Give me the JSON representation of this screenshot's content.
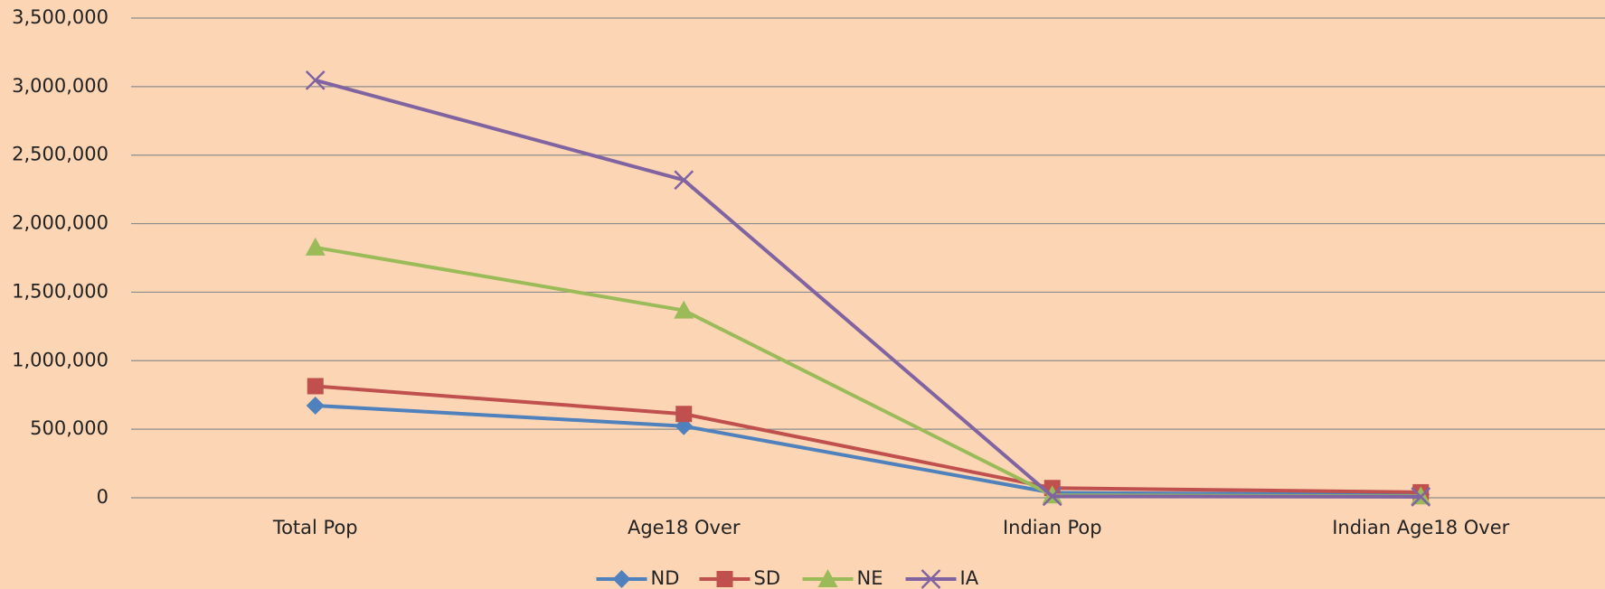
{
  "chart_data": {
    "type": "line",
    "categories": [
      "Total Pop",
      "Age18 Over",
      "Indian Pop",
      "Indian Age18 Over"
    ],
    "series": [
      {
        "name": "ND",
        "color": "#4f81bd",
        "marker": "diamond",
        "values": [
          672591,
          522720,
          36000,
          22000
        ]
      },
      {
        "name": "SD",
        "color": "#c0504d",
        "marker": "square",
        "values": [
          814180,
          611383,
          71000,
          40000
        ]
      },
      {
        "name": "NE",
        "color": "#9bbb59",
        "marker": "triangle",
        "values": [
          1826341,
          1367120,
          18000,
          11000
        ]
      },
      {
        "name": "IA",
        "color": "#8064a2",
        "marker": "x",
        "values": [
          3046355,
          2318362,
          11000,
          7000
        ]
      }
    ],
    "ylim": [
      0,
      3500000
    ],
    "yticks": [
      0,
      {
        "value": 500000,
        "label": "500,000"
      },
      {
        "value": 1000000,
        "label": "1,000,000"
      },
      {
        "value": 1500000,
        "label": "1,500,000"
      },
      {
        "value": 2000000,
        "label": "2,000,000"
      },
      {
        "value": 2500000,
        "label": "2,500,000"
      },
      {
        "value": 3000000,
        "label": "3,000,000"
      },
      {
        "value": 3500000,
        "label": "3,500,000"
      }
    ],
    "grid": true,
    "legend": "bottom"
  }
}
